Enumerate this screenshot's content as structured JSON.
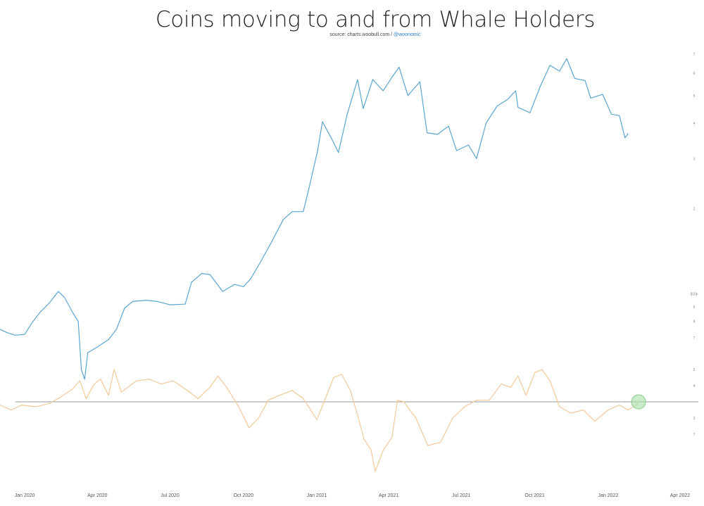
{
  "chart_data": {
    "type": "line",
    "title": "Coins moving to and from Whale Holders",
    "source_prefix": "source: charts.woobull.com / ",
    "source_handle": "@woonomic",
    "x_ticks": [
      "Jan 2020",
      "Apr 2020",
      "Jul 2020",
      "Oct 2020",
      "Jan 2021",
      "Apr 2021",
      "Jul 2021",
      "Oct 2021",
      "Jan 2022",
      "Apr 2022"
    ],
    "xlim": [
      "2019-12-01",
      "2022-05-01"
    ],
    "price_axis": {
      "scale": "log",
      "tick_labels": [
        {
          "v": 7000,
          "t": "7"
        },
        {
          "v": 8000,
          "t": "8"
        },
        {
          "v": 9000,
          "t": "9"
        },
        {
          "v": 10000,
          "t": "$10k"
        },
        {
          "v": 20000,
          "t": "2"
        },
        {
          "v": 30000,
          "t": "3"
        },
        {
          "v": 40000,
          "t": "4"
        },
        {
          "v": 50000,
          "t": "5"
        },
        {
          "v": 60000,
          "t": "6"
        },
        {
          "v": 70000,
          "t": "7"
        }
      ]
    },
    "flow_axis": {
      "tick_labels": [
        {
          "v": 2,
          "t": "5"
        },
        {
          "v": 1,
          "t": "4"
        },
        {
          "v": -1,
          "t": "3"
        },
        {
          "v": -2,
          "t": "7"
        }
      ]
    },
    "zero_line": true,
    "highlight": {
      "date": "2022-02-08",
      "value": 0,
      "color": "#a8e0a8"
    },
    "series": [
      {
        "color": "#5aa6cf",
        "points": [
          [
            "2019-12-01",
            7500
          ],
          [
            "2019-12-10",
            7300
          ],
          [
            "2019-12-20",
            7150
          ],
          [
            "2020-01-01",
            7200
          ],
          [
            "2020-01-10",
            7900
          ],
          [
            "2020-01-20",
            8600
          ],
          [
            "2020-02-01",
            9300
          ],
          [
            "2020-02-12",
            10200
          ],
          [
            "2020-02-20",
            9700
          ],
          [
            "2020-03-01",
            8600
          ],
          [
            "2020-03-08",
            8000
          ],
          [
            "2020-03-12",
            5400
          ],
          [
            "2020-03-16",
            5000
          ],
          [
            "2020-03-20",
            6200
          ],
          [
            "2020-04-01",
            6500
          ],
          [
            "2020-04-15",
            6900
          ],
          [
            "2020-04-25",
            7500
          ],
          [
            "2020-05-05",
            8900
          ],
          [
            "2020-05-15",
            9400
          ],
          [
            "2020-06-01",
            9500
          ],
          [
            "2020-06-15",
            9400
          ],
          [
            "2020-07-01",
            9150
          ],
          [
            "2020-07-20",
            9200
          ],
          [
            "2020-07-28",
            11000
          ],
          [
            "2020-08-10",
            11800
          ],
          [
            "2020-08-20",
            11700
          ],
          [
            "2020-09-05",
            10200
          ],
          [
            "2020-09-20",
            10800
          ],
          [
            "2020-10-01",
            10600
          ],
          [
            "2020-10-10",
            11300
          ],
          [
            "2020-10-22",
            12900
          ],
          [
            "2020-11-05",
            15200
          ],
          [
            "2020-11-20",
            18300
          ],
          [
            "2020-12-01",
            19500
          ],
          [
            "2020-12-15",
            19500
          ],
          [
            "2020-12-22",
            23500
          ],
          [
            "2021-01-02",
            32000
          ],
          [
            "2021-01-08",
            40500
          ],
          [
            "2021-01-20",
            35000
          ],
          [
            "2021-01-28",
            31500
          ],
          [
            "2021-02-08",
            43000
          ],
          [
            "2021-02-21",
            57000
          ],
          [
            "2021-02-28",
            45000
          ],
          [
            "2021-03-12",
            57000
          ],
          [
            "2021-03-25",
            52000
          ],
          [
            "2021-04-05",
            58000
          ],
          [
            "2021-04-14",
            63000
          ],
          [
            "2021-04-25",
            50000
          ],
          [
            "2021-05-10",
            56000
          ],
          [
            "2021-05-19",
            37000
          ],
          [
            "2021-06-01",
            36500
          ],
          [
            "2021-06-15",
            39000
          ],
          [
            "2021-06-25",
            32000
          ],
          [
            "2021-07-10",
            33500
          ],
          [
            "2021-07-20",
            30000
          ],
          [
            "2021-08-01",
            40000
          ],
          [
            "2021-08-15",
            46000
          ],
          [
            "2021-08-28",
            48500
          ],
          [
            "2021-09-07",
            52000
          ],
          [
            "2021-09-10",
            45500
          ],
          [
            "2021-09-25",
            43500
          ],
          [
            "2021-10-08",
            54000
          ],
          [
            "2021-10-20",
            64000
          ],
          [
            "2021-11-01",
            61000
          ],
          [
            "2021-11-10",
            67500
          ],
          [
            "2021-11-20",
            57500
          ],
          [
            "2021-12-03",
            56500
          ],
          [
            "2021-12-10",
            49000
          ],
          [
            "2021-12-25",
            50500
          ],
          [
            "2022-01-05",
            43000
          ],
          [
            "2022-01-15",
            42500
          ],
          [
            "2022-01-22",
            35500
          ],
          [
            "2022-01-26",
            36800
          ]
        ]
      },
      {
        "color": "#f2c998",
        "points": [
          [
            "2019-12-01",
            -0.2
          ],
          [
            "2019-12-15",
            -0.5
          ],
          [
            "2019-12-28",
            -0.2
          ],
          [
            "2020-01-15",
            -0.3
          ],
          [
            "2020-02-01",
            -0.1
          ],
          [
            "2020-02-15",
            0.3
          ],
          [
            "2020-03-01",
            0.8
          ],
          [
            "2020-03-10",
            1.3
          ],
          [
            "2020-03-18",
            0.2
          ],
          [
            "2020-03-28",
            1.1
          ],
          [
            "2020-04-05",
            1.4
          ],
          [
            "2020-04-15",
            0.4
          ],
          [
            "2020-04-22",
            2.0
          ],
          [
            "2020-05-01",
            0.6
          ],
          [
            "2020-05-20",
            1.3
          ],
          [
            "2020-06-05",
            1.4
          ],
          [
            "2020-06-20",
            1.1
          ],
          [
            "2020-07-05",
            1.3
          ],
          [
            "2020-07-20",
            0.8
          ],
          [
            "2020-08-05",
            0.2
          ],
          [
            "2020-08-20",
            0.9
          ],
          [
            "2020-08-30",
            1.6
          ],
          [
            "2020-09-10",
            0.9
          ],
          [
            "2020-09-25",
            -0.3
          ],
          [
            "2020-10-08",
            -1.6
          ],
          [
            "2020-10-20",
            -1.0
          ],
          [
            "2020-11-01",
            0.1
          ],
          [
            "2020-11-15",
            0.4
          ],
          [
            "2020-12-01",
            0.7
          ],
          [
            "2020-12-15",
            0.2
          ],
          [
            "2021-01-01",
            -1.1
          ],
          [
            "2021-01-10",
            0.0
          ],
          [
            "2021-01-22",
            1.5
          ],
          [
            "2021-02-01",
            1.7
          ],
          [
            "2021-02-12",
            0.7
          ],
          [
            "2021-02-22",
            -1.0
          ],
          [
            "2021-03-01",
            -2.3
          ],
          [
            "2021-03-10",
            -3.0
          ],
          [
            "2021-03-15",
            -4.3
          ],
          [
            "2021-03-25",
            -3.0
          ],
          [
            "2021-04-05",
            -2.2
          ],
          [
            "2021-04-12",
            0.1
          ],
          [
            "2021-04-20",
            0.0
          ],
          [
            "2021-05-05",
            -1.0
          ],
          [
            "2021-05-20",
            -2.7
          ],
          [
            "2021-06-05",
            -2.5
          ],
          [
            "2021-06-20",
            -1.0
          ],
          [
            "2021-07-05",
            -0.3
          ],
          [
            "2021-07-20",
            0.1
          ],
          [
            "2021-08-05",
            0.1
          ],
          [
            "2021-08-20",
            1.1
          ],
          [
            "2021-09-01",
            0.9
          ],
          [
            "2021-09-10",
            1.6
          ],
          [
            "2021-09-20",
            0.4
          ],
          [
            "2021-10-01",
            1.8
          ],
          [
            "2021-10-10",
            2.0
          ],
          [
            "2021-10-20",
            1.3
          ],
          [
            "2021-11-01",
            -0.3
          ],
          [
            "2021-11-15",
            -0.7
          ],
          [
            "2021-12-01",
            -0.5
          ],
          [
            "2021-12-15",
            -1.2
          ],
          [
            "2022-01-01",
            -0.5
          ],
          [
            "2022-01-15",
            -0.2
          ],
          [
            "2022-01-26",
            -0.5
          ],
          [
            "2022-02-05",
            -0.2
          ],
          [
            "2022-02-08",
            0.0
          ]
        ]
      }
    ]
  }
}
